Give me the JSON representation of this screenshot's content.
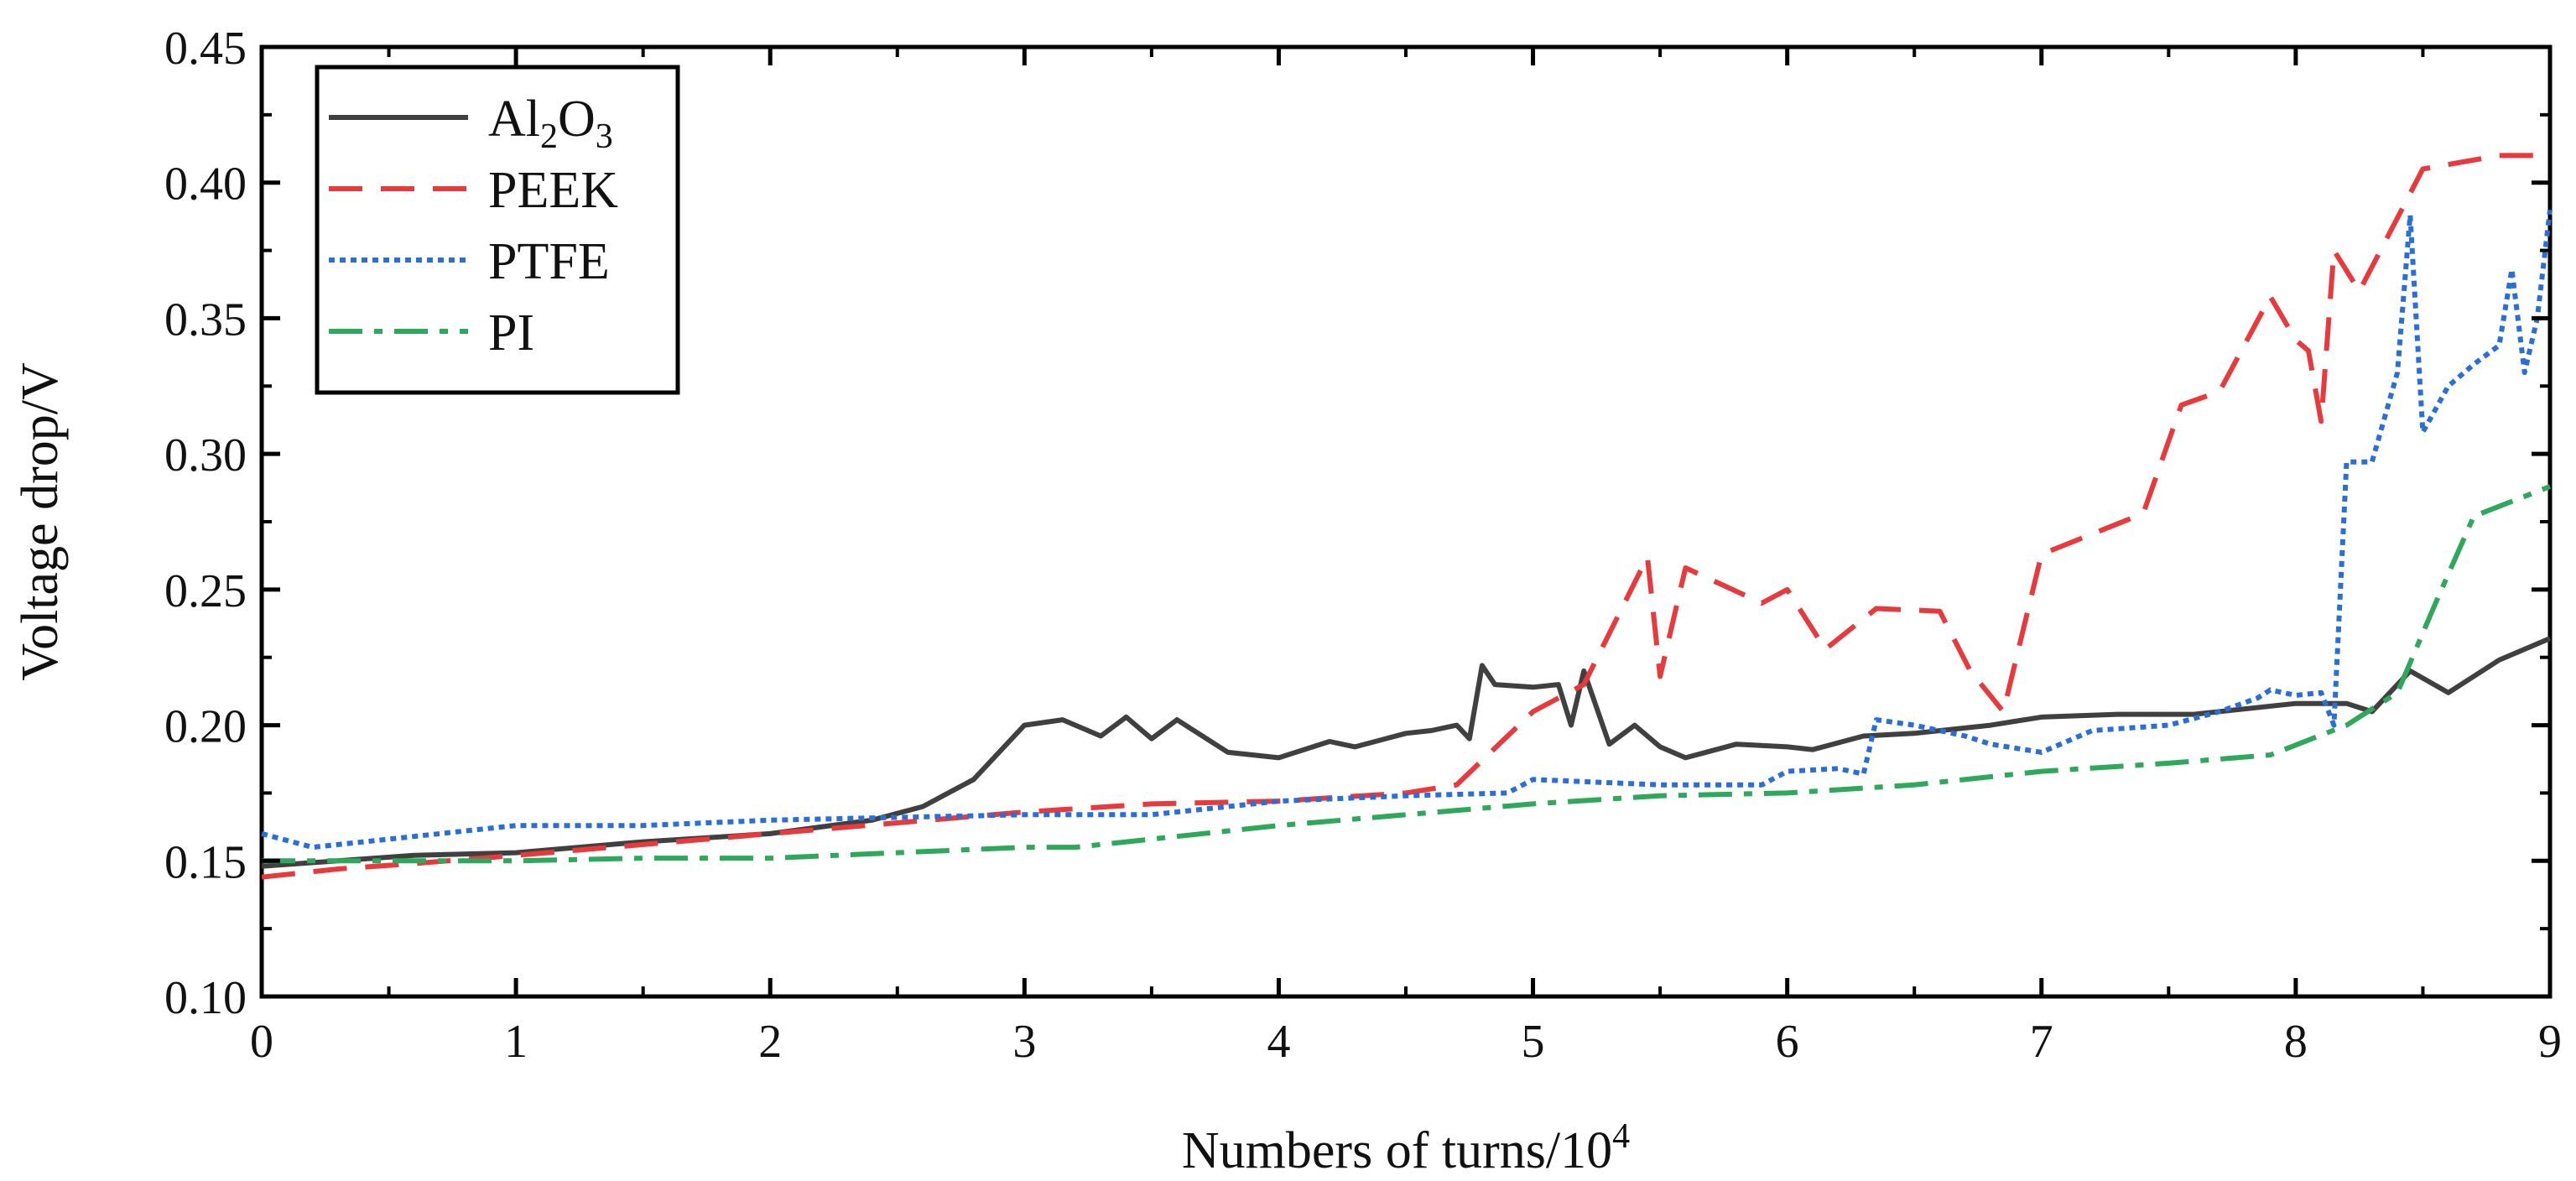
{
  "chart_data": {
    "type": "line",
    "xlabel": "Numbers of turns/10",
    "xlabel_sup": "4",
    "ylabel": "Voltage drop/V",
    "xlim": [
      0,
      9
    ],
    "ylim": [
      0.1,
      0.45
    ],
    "xticks": [
      "0",
      "1",
      "2",
      "3",
      "4",
      "5",
      "6",
      "7",
      "8",
      "9"
    ],
    "yticks": [
      "0.10",
      "0.15",
      "0.20",
      "0.25",
      "0.30",
      "0.35",
      "0.40",
      "0.45"
    ],
    "grid": false,
    "legend_position": "top-left",
    "series": [
      {
        "name": "Al2O3",
        "name_parts": [
          [
            "Al",
            false
          ],
          [
            "2",
            true
          ],
          [
            "O",
            false
          ],
          [
            "3",
            true
          ]
        ],
        "color": "#404040",
        "style": "solid",
        "x": [
          0,
          0.3,
          0.6,
          1.0,
          1.5,
          2.0,
          2.4,
          2.6,
          2.8,
          2.95,
          3.0,
          3.15,
          3.3,
          3.4,
          3.5,
          3.6,
          3.8,
          4.0,
          4.2,
          4.3,
          4.5,
          4.6,
          4.7,
          4.75,
          4.8,
          4.85,
          5.0,
          5.1,
          5.15,
          5.2,
          5.3,
          5.4,
          5.5,
          5.6,
          5.8,
          6.0,
          6.1,
          6.3,
          6.5,
          6.8,
          7.0,
          7.3,
          7.6,
          8.0,
          8.2,
          8.3,
          8.45,
          8.6,
          8.8,
          9.0
        ],
        "y": [
          0.148,
          0.15,
          0.152,
          0.153,
          0.157,
          0.16,
          0.165,
          0.17,
          0.18,
          0.195,
          0.2,
          0.202,
          0.196,
          0.203,
          0.195,
          0.202,
          0.19,
          0.188,
          0.194,
          0.192,
          0.197,
          0.198,
          0.2,
          0.195,
          0.222,
          0.215,
          0.214,
          0.215,
          0.2,
          0.22,
          0.193,
          0.2,
          0.192,
          0.188,
          0.193,
          0.192,
          0.191,
          0.196,
          0.197,
          0.2,
          0.203,
          0.204,
          0.204,
          0.208,
          0.208,
          0.205,
          0.22,
          0.212,
          0.224,
          0.232
        ]
      },
      {
        "name": "PEEK",
        "name_parts": [
          [
            "PEEK",
            false
          ]
        ],
        "color": "#e8393c",
        "style": "dashed",
        "x": [
          0,
          0.3,
          0.6,
          1.0,
          1.5,
          2.0,
          2.5,
          3.0,
          3.5,
          4.0,
          4.5,
          4.7,
          5.0,
          5.2,
          5.45,
          5.5,
          5.6,
          5.9,
          6.0,
          6.15,
          6.35,
          6.6,
          6.72,
          6.85,
          7.0,
          7.4,
          7.55,
          7.7,
          7.9,
          8.0,
          8.05,
          8.1,
          8.15,
          8.25,
          8.5,
          8.8,
          9.0
        ],
        "y": [
          0.144,
          0.147,
          0.149,
          0.152,
          0.156,
          0.16,
          0.164,
          0.168,
          0.171,
          0.172,
          0.175,
          0.178,
          0.205,
          0.215,
          0.262,
          0.218,
          0.258,
          0.245,
          0.25,
          0.228,
          0.243,
          0.242,
          0.22,
          0.205,
          0.263,
          0.278,
          0.318,
          0.323,
          0.358,
          0.342,
          0.338,
          0.312,
          0.375,
          0.36,
          0.405,
          0.41,
          0.41
        ]
      },
      {
        "name": "PTFE",
        "name_parts": [
          [
            "PTFE",
            false
          ]
        ],
        "color": "#2a6fd6",
        "style": "dotted",
        "x": [
          0,
          0.2,
          0.5,
          1.0,
          1.5,
          2.0,
          2.5,
          3.0,
          3.5,
          4.0,
          4.5,
          4.9,
          5.0,
          5.5,
          5.9,
          6.0,
          6.2,
          6.3,
          6.35,
          6.5,
          6.7,
          6.8,
          7.0,
          7.2,
          7.5,
          7.7,
          7.85,
          7.9,
          8.0,
          8.1,
          8.15,
          8.2,
          8.3,
          8.4,
          8.45,
          8.5,
          8.6,
          8.7,
          8.8,
          8.85,
          8.9,
          8.95,
          9.0
        ],
        "y": [
          0.16,
          0.155,
          0.158,
          0.163,
          0.163,
          0.165,
          0.166,
          0.167,
          0.167,
          0.172,
          0.174,
          0.175,
          0.18,
          0.178,
          0.178,
          0.183,
          0.184,
          0.182,
          0.202,
          0.2,
          0.196,
          0.193,
          0.19,
          0.198,
          0.2,
          0.205,
          0.21,
          0.213,
          0.211,
          0.212,
          0.2,
          0.297,
          0.297,
          0.33,
          0.388,
          0.308,
          0.325,
          0.333,
          0.34,
          0.368,
          0.33,
          0.35,
          0.39
        ]
      },
      {
        "name": "PI",
        "name_parts": [
          [
            "PI",
            false
          ]
        ],
        "color": "#2ea85a",
        "style": "dashdot",
        "x": [
          0,
          0.5,
          1.0,
          1.5,
          2.0,
          2.5,
          3.0,
          3.2,
          3.5,
          4.0,
          4.5,
          5.0,
          5.5,
          6.0,
          6.5,
          7.0,
          7.5,
          7.9,
          8.2,
          8.4,
          8.55,
          8.7,
          9.0
        ],
        "y": [
          0.15,
          0.15,
          0.15,
          0.151,
          0.151,
          0.153,
          0.155,
          0.155,
          0.158,
          0.163,
          0.167,
          0.171,
          0.174,
          0.175,
          0.178,
          0.183,
          0.186,
          0.189,
          0.2,
          0.212,
          0.245,
          0.277,
          0.288
        ]
      }
    ]
  }
}
